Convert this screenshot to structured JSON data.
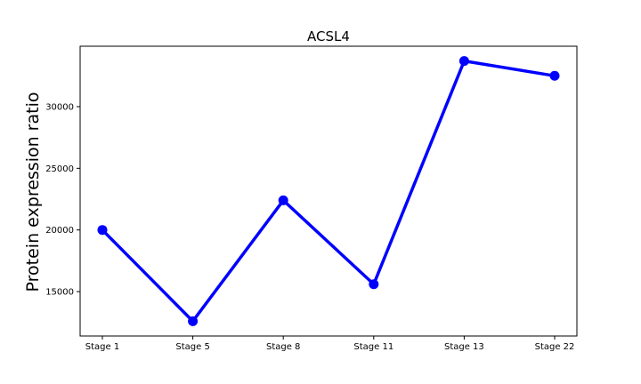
{
  "chart_data": {
    "type": "line",
    "title": "ACSL4",
    "xlabel": "",
    "ylabel": "Protein expression ratio",
    "categories": [
      "Stage 1",
      "Stage 5",
      "Stage 8",
      "Stage 11",
      "Stage 13",
      "Stage 22"
    ],
    "series": [
      {
        "values": [
          20000,
          12600,
          22400,
          15600,
          33700,
          32500
        ]
      }
    ],
    "yticks": [
      15000,
      20000,
      25000,
      30000
    ],
    "ylim": [
      11400,
      34900
    ],
    "grid": false,
    "line_color": "#0000ff",
    "marker": "circle"
  }
}
